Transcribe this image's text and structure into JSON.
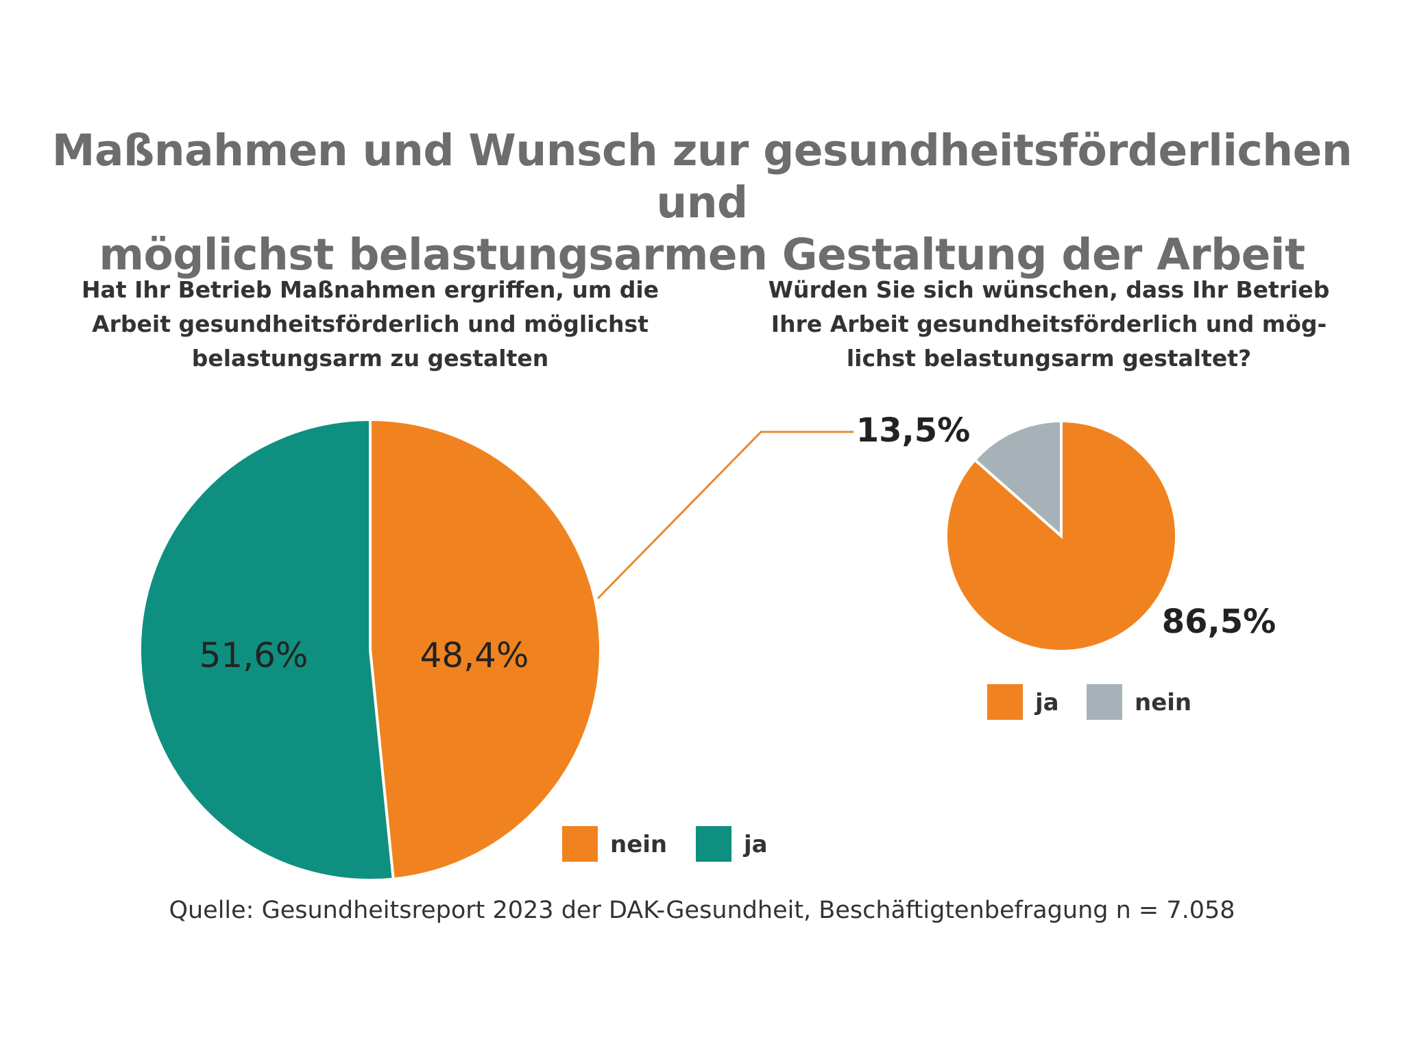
{
  "title_lines": [
    "Maßnahmen und Wunsch zur gesundheitsförderlichen und",
    "möglichst belastungsarmen Gestaltung der Arbeit"
  ],
  "source": "Quelle: Gesundheitsreport 2023 der DAK-Gesundheit, Beschäftigtenbefragung n = 7.058",
  "colors": {
    "orange": "#f0831f",
    "teal": "#0f8f80",
    "gray": "#a7b1b8",
    "connector": "#e8892f"
  },
  "chart_data": [
    {
      "type": "pie",
      "title_lines": [
        "Hat Ihr Betrieb Maßnahmen ergriffen, um die",
        "Arbeit gesundheitsförderlich und möglichst",
        "belastungsarm zu gestalten"
      ],
      "slices": [
        {
          "label": "nein",
          "value": 48.4,
          "display": "48,4%",
          "color": "#f0831f"
        },
        {
          "label": "ja",
          "value": 51.6,
          "display": "51,6%",
          "color": "#0f8f80"
        }
      ],
      "legend": [
        {
          "label": "nein",
          "color": "#f0831f"
        },
        {
          "label": "ja",
          "color": "#0f8f80"
        }
      ],
      "legend_position": "bottom-right"
    },
    {
      "type": "pie",
      "title_lines": [
        "Würden Sie sich wünschen, dass Ihr Betrieb",
        "Ihre Arbeit gesundheitsförderlich und mög-",
        "lichst belastungsarm gestaltet?"
      ],
      "slices": [
        {
          "label": "nein",
          "value": 13.5,
          "display": "13,5%",
          "color": "#a7b1b8"
        },
        {
          "label": "ja",
          "value": 86.5,
          "display": "86,5%",
          "color": "#f0831f"
        }
      ],
      "legend": [
        {
          "label": "ja",
          "color": "#f0831f"
        },
        {
          "label": "nein",
          "color": "#a7b1b8"
        }
      ],
      "legend_position": "bottom"
    }
  ]
}
